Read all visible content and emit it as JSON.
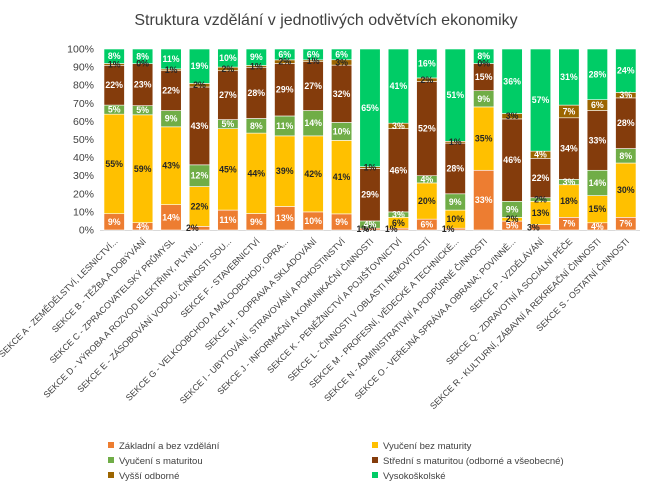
{
  "chart_data": {
    "type": "bar",
    "stacked": true,
    "normalized": true,
    "title": "Struktura vzdělání v jednotlivých odvětvích ekonomiky",
    "ylim": [
      0,
      100
    ],
    "yticks": [
      "0%",
      "10%",
      "20%",
      "30%",
      "40%",
      "50%",
      "60%",
      "70%",
      "80%",
      "90%",
      "100%"
    ],
    "grid": false,
    "legend_position": "bottom",
    "categories": [
      "SEKCE A - ZEMĚDĚLSTVÍ, LESNICTVÍ...",
      "SEKCE B - TĚŽBA A DOBÝVÁNÍ",
      "SEKCE C - ZPRACOVATELSKÝ PRŮMYSL",
      "SEKCE D - VÝROBA A ROZVOD ELEKTŘINY, PLYNU...",
      "SEKCE E - ZÁSOBOVÁNÍ VODOU; ČINNOSTI SOU...",
      "SEKCE F - STAVEBNICTVÍ",
      "SEKCE G - VELKOOBCHOD A MALOOBCHOD; OPRA...",
      "SEKCE H - DOPRAVA A SKLADOVÁNÍ",
      "SEKCE I - UBYTOVÁNÍ, STRAVOVÁNÍ A POHOSTINSTVÍ",
      "SEKCE J - INFORMAČNÍ A KOMUNIKAČNÍ ČINNOSTI",
      "SEKCE K - PENĚŽNICTVÍ A POJIŠŤOVNICTVÍ",
      "SEKCE L - ČINNOSTI V OBLASTI NEMOVITOSTÍ",
      "SEKCE M - PROFESNÍ, VĚDECKÉ A TECHNICKÉ...",
      "SEKCE N - ADMINISTRATIVNÍ A PODPŮRNÉ ČINNOSTI",
      "SEKCE O - VEŘEJNÁ SPRÁVA A OBRANA; POVINNÉ...",
      "SEKCE P - VZDĚLÁVÁNÍ",
      "SEKCE Q - ZDRAVOTNÍ A SOCIÁLNÍ PÉČE",
      "SEKCE R - KULTURNÍ, ZÁBAVNÍ A REKREAČNÍ ČINNOSTI",
      "SEKCE S - OSTATNÍ ČINNOSTI"
    ],
    "series": [
      {
        "name": "Základní a bez vzdělání",
        "color": "#ED7D31",
        "values": [
          9,
          4,
          14,
          2,
          11,
          9,
          13,
          10,
          9,
          1,
          1,
          6,
          1,
          33,
          5,
          3,
          7,
          4,
          7
        ]
      },
      {
        "name": "Vyučení bez maturity",
        "color": "#FFC000",
        "values": [
          55,
          59,
          43,
          22,
          45,
          44,
          39,
          42,
          41,
          0,
          6,
          20,
          10,
          35,
          2,
          13,
          18,
          15,
          30
        ]
      },
      {
        "name": "Vyučení s maturitou",
        "color": "#70AD47",
        "values": [
          5,
          5,
          9,
          12,
          5,
          8,
          11,
          14,
          10,
          4,
          3,
          4,
          9,
          9,
          9,
          2,
          3,
          14,
          8
        ]
      },
      {
        "name": "Střední s maturitou (odborné a všeobecné)",
        "color": "#843C0C",
        "values": [
          22,
          23,
          22,
          43,
          27,
          28,
          29,
          27,
          32,
          29,
          46,
          52,
          28,
          15,
          46,
          22,
          34,
          33,
          28
        ]
      },
      {
        "name": "Vyšší odborné",
        "color": "#9C6500",
        "values": [
          1,
          0,
          1,
          2,
          2,
          1,
          2,
          1,
          3,
          1,
          3,
          2,
          1,
          0,
          3,
          4,
          7,
          6,
          3
        ]
      },
      {
        "name": "Vysokoškolské",
        "color": "#00CC66",
        "values": [
          8,
          8,
          11,
          19,
          10,
          9,
          6,
          6,
          6,
          65,
          41,
          16,
          51,
          8,
          36,
          57,
          31,
          28,
          24
        ]
      }
    ],
    "data_labels": [
      [
        "9%",
        "55%",
        "5%",
        "22%",
        "1%",
        "8%"
      ],
      [
        "4%",
        "59%",
        "5%",
        "23%",
        "0%",
        "8%"
      ],
      [
        "14%",
        "43%",
        "9%",
        "22%",
        "1%",
        "11%"
      ],
      [
        "2%",
        "22%",
        "12%",
        "43%",
        "2%",
        "19%"
      ],
      [
        "11%",
        "45%",
        "5%",
        "27%",
        "2%",
        "10%"
      ],
      [
        "9%",
        "44%",
        "8%",
        "28%",
        "1%",
        "9%"
      ],
      [
        "13%",
        "39%",
        "11%",
        "29%",
        "2%",
        "6%"
      ],
      [
        "10%",
        "42%",
        "14%",
        "27%",
        "1%",
        "6%"
      ],
      [
        "9%",
        "41%",
        "10%",
        "32%",
        "3%",
        "6%"
      ],
      [
        "1%",
        "0%",
        "4%",
        "29%",
        "1%",
        "65%"
      ],
      [
        "1%",
        "6%",
        "3%",
        "46%",
        "3%",
        "41%"
      ],
      [
        "6%",
        "20%",
        "4%",
        "52%",
        "2%",
        "16%"
      ],
      [
        "1%",
        "10%",
        "9%",
        "28%",
        "1%",
        "51%"
      ],
      [
        "33%",
        "35%",
        "9%",
        "15%",
        "0%",
        "8%"
      ],
      [
        "5%",
        "2%",
        "9%",
        "46%",
        "3%",
        "36%"
      ],
      [
        "3%",
        "13%",
        "2%",
        "22%",
        "4%",
        "57%"
      ],
      [
        "7%",
        "18%",
        "3%",
        "34%",
        "7%",
        "31%"
      ],
      [
        "4%",
        "15%",
        "14%",
        "33%",
        "6%",
        "28%"
      ],
      [
        "7%",
        "30%",
        "8%",
        "28%",
        "3%",
        "24%"
      ]
    ]
  }
}
